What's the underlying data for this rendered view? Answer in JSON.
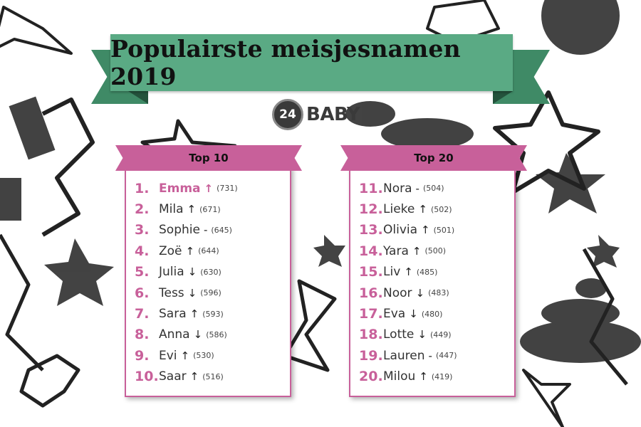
{
  "title": "Populairste meisjesnamen 2019",
  "logo": {
    "number": "24",
    "text": "BABY"
  },
  "colors": {
    "banner": "#5aaa84",
    "accent": "#c8609a"
  },
  "lists": [
    {
      "heading": "Top 10",
      "entries": [
        {
          "rank": "1.",
          "name": "Emma",
          "trend": "↑",
          "count": "(731)"
        },
        {
          "rank": "2.",
          "name": "Mila",
          "trend": "↑",
          "count": "(671)"
        },
        {
          "rank": "3.",
          "name": "Sophie",
          "trend": "-",
          "count": "(645)"
        },
        {
          "rank": "4.",
          "name": "Zoë",
          "trend": "↑",
          "count": "(644)"
        },
        {
          "rank": "5.",
          "name": "Julia",
          "trend": "↓",
          "count": "(630)"
        },
        {
          "rank": "6.",
          "name": "Tess",
          "trend": "↓",
          "count": "(596)"
        },
        {
          "rank": "7.",
          "name": "Sara",
          "trend": "↑",
          "count": "(593)"
        },
        {
          "rank": "8.",
          "name": "Anna",
          "trend": "↓",
          "count": "(586)"
        },
        {
          "rank": "9.",
          "name": "Evi",
          "trend": "↑",
          "count": "(530)"
        },
        {
          "rank": "10.",
          "name": "Saar",
          "trend": "↑",
          "count": "(516)"
        }
      ]
    },
    {
      "heading": "Top 20",
      "entries": [
        {
          "rank": "11.",
          "name": "Nora",
          "trend": "-",
          "count": "(504)"
        },
        {
          "rank": "12.",
          "name": "Lieke",
          "trend": "↑",
          "count": "(502)"
        },
        {
          "rank": "13.",
          "name": "Olivia",
          "trend": "↑",
          "count": "(501)"
        },
        {
          "rank": "14.",
          "name": "Yara",
          "trend": "↑",
          "count": "(500)"
        },
        {
          "rank": "15.",
          "name": "Liv",
          "trend": "↑",
          "count": "(485)"
        },
        {
          "rank": "16.",
          "name": "Noor",
          "trend": "↓",
          "count": "(483)"
        },
        {
          "rank": "17.",
          "name": "Eva",
          "trend": "↓",
          "count": "(480)"
        },
        {
          "rank": "18.",
          "name": "Lotte",
          "trend": "↓",
          "count": "(449)"
        },
        {
          "rank": "19.",
          "name": "Lauren",
          "trend": "-",
          "count": "(447)"
        },
        {
          "rank": "20.",
          "name": "Milou",
          "trend": "↑",
          "count": "(419)"
        }
      ]
    }
  ]
}
